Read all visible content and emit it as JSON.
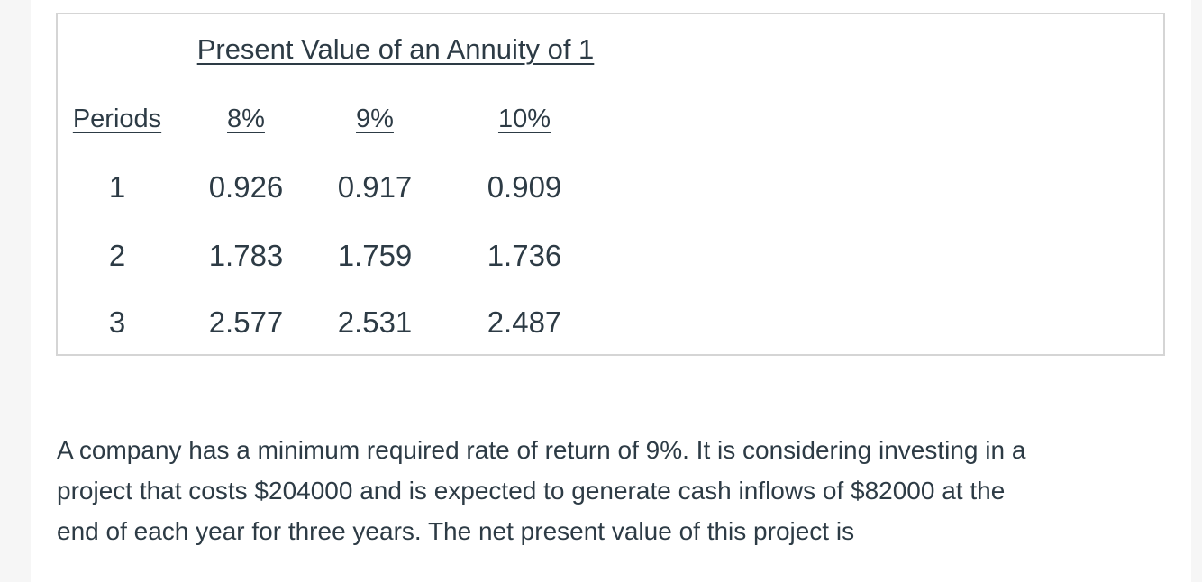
{
  "page": {
    "text_color": "#2d3b45",
    "box_border_color": "#d5d5d5",
    "margin_strip_color": "#f6f6f6",
    "background_color": "#ffffff"
  },
  "annuity_table": {
    "title": "Present Value of an Annuity of 1",
    "headers": [
      "Periods",
      "8%",
      "9%",
      "10%"
    ],
    "rows": [
      [
        "1",
        "0.926",
        "0.917",
        "0.909"
      ],
      [
        "2",
        "1.783",
        "1.759",
        "1.736"
      ],
      [
        "3",
        "2.577",
        "2.531",
        "2.487"
      ]
    ]
  },
  "question": {
    "lines": [
      "A company has a minimum required rate of return of 9%. It is considering investing in a",
      "project that costs $204000 and is expected to generate cash inflows of $82000 at the",
      "end of each year for three years. The net present value of this project is"
    ]
  }
}
